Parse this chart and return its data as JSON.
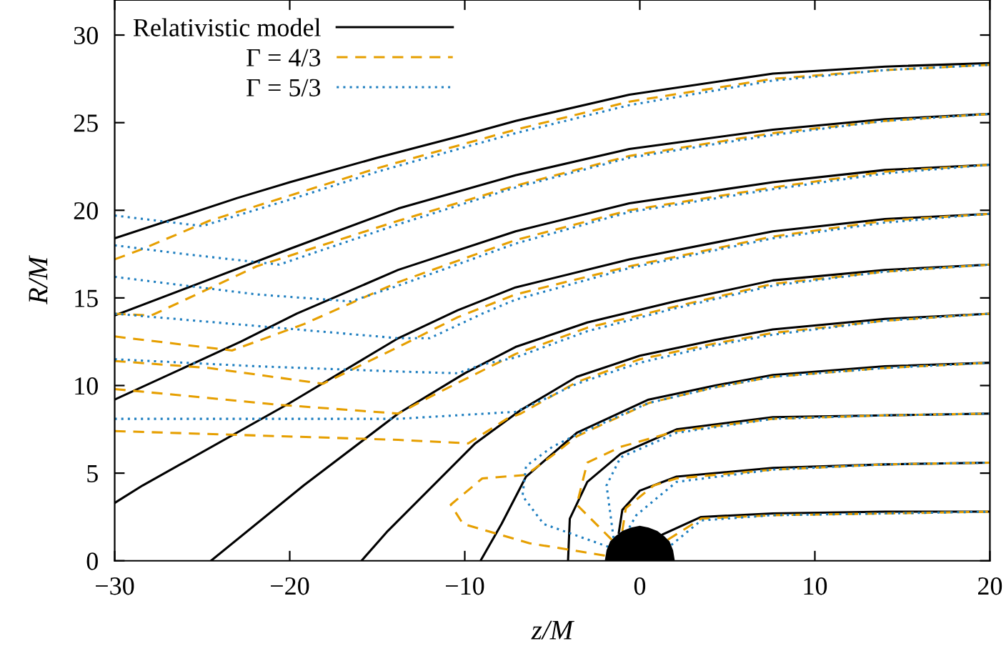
{
  "chart_data": {
    "type": "line",
    "xlabel": "z/M",
    "ylabel": "R/M",
    "xlim": [
      -30,
      20
    ],
    "ylim": [
      0,
      32
    ],
    "xticks": [
      -30,
      -20,
      -10,
      0,
      10,
      20
    ],
    "yticks": [
      0,
      5,
      10,
      15,
      20,
      25,
      30
    ],
    "grid": false,
    "legend": "top left",
    "marker": "none",
    "series": [
      {
        "name": "Relativistic model",
        "color": "#000000",
        "line_style": "solid",
        "x": [
          -30,
          -23,
          -20,
          -15,
          -10,
          -7.1,
          -0.6,
          7.6,
          14,
          20
        ],
        "values": [
          18.4,
          20.7,
          21.6,
          23.0,
          24.3,
          25.1,
          26.6,
          27.8,
          28.2,
          28.4
        ]
      },
      {
        "color": "#000000",
        "line_style": "solid",
        "x": [
          -30,
          -25,
          -20,
          -13.8,
          -7.1,
          -0.6,
          7.6,
          14,
          20
        ],
        "values": [
          14.0,
          15.9,
          17.8,
          20.1,
          22.0,
          23.5,
          24.6,
          25.2,
          25.5
        ]
      },
      {
        "color": "#000000",
        "line_style": "solid",
        "x": [
          -30,
          -22.8,
          -19.6,
          -13.8,
          -7.1,
          -0.6,
          7.6,
          14,
          20
        ],
        "values": [
          9.2,
          12.5,
          14.1,
          16.6,
          18.8,
          20.4,
          21.6,
          22.3,
          22.6
        ]
      },
      {
        "color": "#000000",
        "line_style": "solid",
        "x": [
          -30,
          -28.4,
          -20,
          -13.8,
          -10.4,
          -7.1,
          -0.6,
          7.6,
          14,
          20
        ],
        "values": [
          3.3,
          4.3,
          9.0,
          12.7,
          14.3,
          15.6,
          17.2,
          18.8,
          19.5,
          19.8
        ]
      },
      {
        "color": "#000000",
        "line_style": "solid",
        "x": [
          -24.5,
          -19.2,
          -13.8,
          -10,
          -7.1,
          -3,
          2,
          7.6,
          14,
          20
        ],
        "values": [
          0,
          4.3,
          8.4,
          10.7,
          12.2,
          13.6,
          14.8,
          16.0,
          16.6,
          16.9
        ]
      },
      {
        "color": "#000000",
        "line_style": "solid",
        "x": [
          -15.9,
          -14.4,
          -9.4,
          -6.8,
          -3.6,
          0,
          4.3,
          7.6,
          14,
          20
        ],
        "values": [
          0,
          1.7,
          6.7,
          8.6,
          10.5,
          11.7,
          12.6,
          13.2,
          13.8,
          14.1
        ]
      },
      {
        "color": "#000000",
        "line_style": "solid",
        "x": [
          -9.1,
          -7.9,
          -6.5,
          -3.6,
          0.5,
          4.3,
          7.6,
          14,
          20
        ],
        "values": [
          0,
          2.1,
          4.8,
          7.3,
          9.2,
          10.0,
          10.6,
          11.1,
          11.3
        ]
      },
      {
        "color": "#000000",
        "line_style": "solid",
        "x": [
          -4.1,
          -4.0,
          -3.0,
          -1.1,
          2.1,
          7.6,
          14,
          20
        ],
        "values": [
          0,
          2.4,
          4.5,
          6.1,
          7.5,
          8.2,
          8.3,
          8.4
        ]
      },
      {
        "color": "#000000",
        "line_style": "solid",
        "x": [
          -1.2,
          -1.0,
          0,
          2.1,
          7.6,
          14,
          20
        ],
        "values": [
          1.6,
          2.9,
          4.0,
          4.8,
          5.3,
          5.5,
          5.6
        ]
      },
      {
        "color": "#000000",
        "line_style": "solid",
        "x": [
          1.3,
          3.5,
          7.6,
          14,
          20
        ],
        "values": [
          1.5,
          2.5,
          2.7,
          2.8,
          2.8
        ]
      },
      {
        "name": "Γ = 4/3",
        "color": "#e69f00",
        "line_style": "dashed",
        "x": [
          -30,
          -28.4,
          -24.6,
          -21.4,
          -15,
          -10,
          -7.1,
          -0.6,
          7.6,
          14,
          20
        ],
        "values": [
          17.2,
          17.8,
          19.4,
          20.4,
          22.4,
          23.8,
          24.6,
          26.2,
          27.5,
          28.0,
          28.3
        ]
      },
      {
        "color": "#e69f00",
        "line_style": "dashed",
        "x": [
          -30,
          -27.9,
          -21.9,
          -13.8,
          -7.1,
          -0.6,
          7.6,
          14,
          20
        ],
        "values": [
          14.1,
          14.0,
          16.8,
          19.4,
          21.4,
          23.1,
          24.4,
          25.1,
          25.5
        ]
      },
      {
        "color": "#e69f00",
        "line_style": "dashed",
        "x": [
          -30,
          -23.3,
          -19.2,
          -13.8,
          -7.1,
          -0.6,
          7.6,
          14,
          20
        ],
        "values": [
          12.8,
          12.0,
          13.5,
          15.9,
          18.3,
          20.0,
          21.3,
          22.2,
          22.6
        ]
      },
      {
        "color": "#e69f00",
        "line_style": "dashed",
        "x": [
          -30,
          -24.6,
          -18.1,
          -13.6,
          -10.4,
          -7.1,
          -0.6,
          7.6,
          14,
          20
        ],
        "values": [
          11.4,
          11.0,
          10.1,
          12.3,
          13.9,
          15.2,
          16.8,
          18.5,
          19.4,
          19.8
        ]
      },
      {
        "color": "#e69f00",
        "line_style": "dashed",
        "x": [
          -30,
          -20.6,
          -13.8,
          -11.7,
          -7.1,
          -3,
          2,
          7.6,
          14,
          20
        ],
        "values": [
          9.8,
          8.9,
          8.4,
          9.5,
          11.8,
          13.3,
          14.5,
          15.8,
          16.5,
          16.9
        ]
      },
      {
        "color": "#e69f00",
        "line_style": "dashed",
        "x": [
          -30,
          -13.8,
          -9.8,
          -7.6,
          -6.8,
          -3.6,
          0,
          4.3,
          7.6,
          14,
          20
        ],
        "values": [
          7.4,
          6.9,
          6.7,
          8.1,
          8.4,
          10.2,
          11.5,
          12.4,
          13.0,
          13.7,
          14.1
        ]
      },
      {
        "color": "#e69f00",
        "line_style": "dashed",
        "x": [
          -2.0,
          -6.3,
          -10.1,
          -10.8,
          -9.0,
          -6.5,
          -5.0,
          -3.6,
          0.5,
          4.3,
          7.6,
          14,
          20
        ],
        "values": [
          0.3,
          1.0,
          2.1,
          3.2,
          4.7,
          4.9,
          6.0,
          7.1,
          9.0,
          9.9,
          10.5,
          11.0,
          11.3
        ]
      },
      {
        "color": "#e69f00",
        "line_style": "dashed",
        "x": [
          -1.6,
          -3.6,
          -3.0,
          -1.1,
          2.1,
          7.6,
          14,
          20
        ],
        "values": [
          1.2,
          3.2,
          5.6,
          6.5,
          7.4,
          8.1,
          8.3,
          8.4
        ]
      },
      {
        "color": "#e69f00",
        "line_style": "dashed",
        "x": [
          -1.0,
          -0.8,
          0.8,
          2.1,
          7.6,
          14,
          20
        ],
        "values": [
          1.7,
          3.0,
          4.3,
          4.7,
          5.2,
          5.5,
          5.6
        ]
      },
      {
        "color": "#e69f00",
        "line_style": "dashed",
        "x": [
          1.6,
          3.5,
          7.6,
          14,
          20
        ],
        "values": [
          1.2,
          2.4,
          2.6,
          2.7,
          2.8
        ]
      },
      {
        "name": "Γ = 5/3",
        "color": "#1f7fc0",
        "line_style": "dotted",
        "x": [
          -30,
          -25,
          -19.7,
          -15,
          -10,
          -7.1,
          -0.6,
          7.6,
          14,
          20
        ],
        "values": [
          19.7,
          19.1,
          20.7,
          22.2,
          23.6,
          24.4,
          26.0,
          27.4,
          28.0,
          28.3
        ]
      },
      {
        "color": "#1f7fc0",
        "line_style": "dotted",
        "x": [
          -30,
          -26.0,
          -20.6,
          -13.8,
          -7.1,
          -0.6,
          7.6,
          14,
          20
        ],
        "values": [
          18.0,
          17.5,
          16.9,
          19.2,
          21.3,
          23.0,
          24.3,
          25.1,
          25.5
        ]
      },
      {
        "color": "#1f7fc0",
        "line_style": "dotted",
        "x": [
          -30,
          -21.9,
          -16.5,
          -13.8,
          -7.1,
          -0.6,
          7.6,
          14,
          20
        ],
        "values": [
          16.2,
          15.2,
          14.8,
          15.7,
          18.1,
          19.9,
          21.2,
          22.1,
          22.6
        ]
      },
      {
        "color": "#1f7fc0",
        "line_style": "dotted",
        "x": [
          -30,
          -21.9,
          -13.8,
          -12.0,
          -9.0,
          -7.1,
          -0.6,
          7.6,
          14,
          20
        ],
        "values": [
          14.1,
          13.4,
          12.7,
          12.7,
          14.1,
          14.9,
          16.7,
          18.4,
          19.3,
          19.8
        ]
      },
      {
        "color": "#1f7fc0",
        "line_style": "dotted",
        "x": [
          -30,
          -21.9,
          -13.8,
          -10.4,
          -9.0,
          -7.1,
          -3,
          2,
          7.6,
          14,
          20
        ],
        "values": [
          11.5,
          11.1,
          10.8,
          10.7,
          11.2,
          11.6,
          13.1,
          14.4,
          15.7,
          16.5,
          16.9
        ]
      },
      {
        "color": "#1f7fc0",
        "line_style": "dotted",
        "x": [
          -30,
          -13.8,
          -7.1,
          -5.5,
          -3.6,
          0,
          4.3,
          7.6,
          14,
          20
        ],
        "values": [
          8.1,
          8.1,
          8.5,
          9.2,
          10.1,
          11.3,
          12.3,
          12.9,
          13.7,
          14.1
        ]
      },
      {
        "color": "#1f7fc0",
        "line_style": "dotted",
        "x": [
          -1.8,
          -5.5,
          -6.7,
          -6.5,
          -5.0,
          -3.6,
          0.5,
          4.3,
          7.6,
          14,
          20
        ],
        "values": [
          0.8,
          2.1,
          3.7,
          5.4,
          6.5,
          7.2,
          9.0,
          9.9,
          10.5,
          11.0,
          11.3
        ]
      },
      {
        "color": "#1f7fc0",
        "line_style": "dotted",
        "x": [
          -1.5,
          -1.9,
          -1.1,
          2.1,
          7.6,
          14,
          20
        ],
        "values": [
          1.3,
          4.3,
          5.9,
          7.3,
          8.1,
          8.3,
          8.4
        ]
      },
      {
        "color": "#1f7fc0",
        "line_style": "dotted",
        "x": [
          -0.6,
          -0.2,
          1.0,
          2.1,
          7.6,
          14,
          20
        ],
        "values": [
          1.9,
          2.6,
          3.6,
          4.5,
          5.2,
          5.5,
          5.6
        ]
      },
      {
        "color": "#1f7fc0",
        "line_style": "dotted",
        "x": [
          1.8,
          3.5,
          7.6,
          14,
          20
        ],
        "values": [
          0.9,
          2.3,
          2.6,
          2.7,
          2.8
        ]
      },
      {
        "type": "area",
        "color": "#000000",
        "x": [
          -2,
          -1.9,
          -1.7,
          -1.4,
          -1,
          -0.5,
          0,
          0.5,
          1,
          1.4,
          1.7,
          1.9,
          2
        ],
        "values": [
          0,
          0.6,
          1.1,
          1.4,
          1.7,
          1.9,
          2,
          1.9,
          1.7,
          1.4,
          1.1,
          0.6,
          0
        ]
      }
    ]
  }
}
